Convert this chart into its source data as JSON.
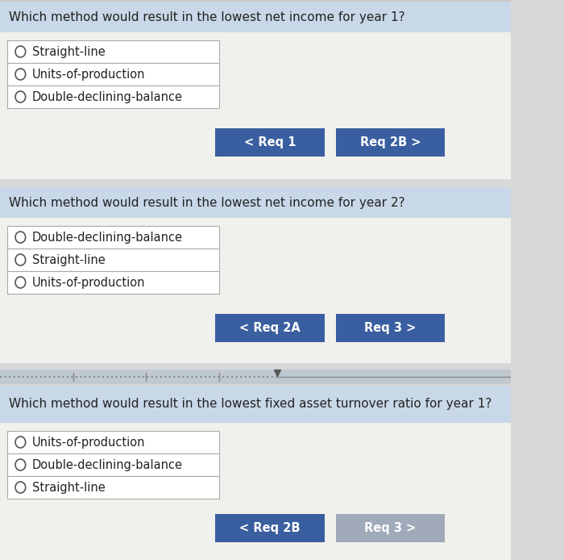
{
  "bg_color": "#d8d8d8",
  "panel_bg": "#f0f0ec",
  "header_bg": "#c8d8e8",
  "btn_blue": "#3a5fa0",
  "btn_gray": "#a0aabb",
  "border_color": "#aaaaaa",
  "text_color": "#222222",
  "white": "#ffffff",
  "sections": [
    {
      "question": "Which method would result in the lowest net income for year 1?",
      "options": [
        "Straight-line",
        "Units-of-production",
        "Double-declining-balance"
      ],
      "btn_left_label": "< Req 1",
      "btn_right_label": "Req 2B >",
      "btn_right_active": true
    },
    {
      "question": "Which method would result in the lowest net income for year 2?",
      "options": [
        "Double-declining-balance",
        "Straight-line",
        "Units-of-production"
      ],
      "btn_left_label": "< Req 2A",
      "btn_right_label": "Req 3 >",
      "btn_right_active": true
    },
    {
      "question": "Which method would result in the lowest fixed asset turnover ratio for year 1?",
      "options": [
        "Units-of-production",
        "Double-declining-balance",
        "Straight-line"
      ],
      "btn_left_label": "< Req 2B",
      "btn_right_label": "Req 3 >",
      "btn_right_active": false
    }
  ]
}
